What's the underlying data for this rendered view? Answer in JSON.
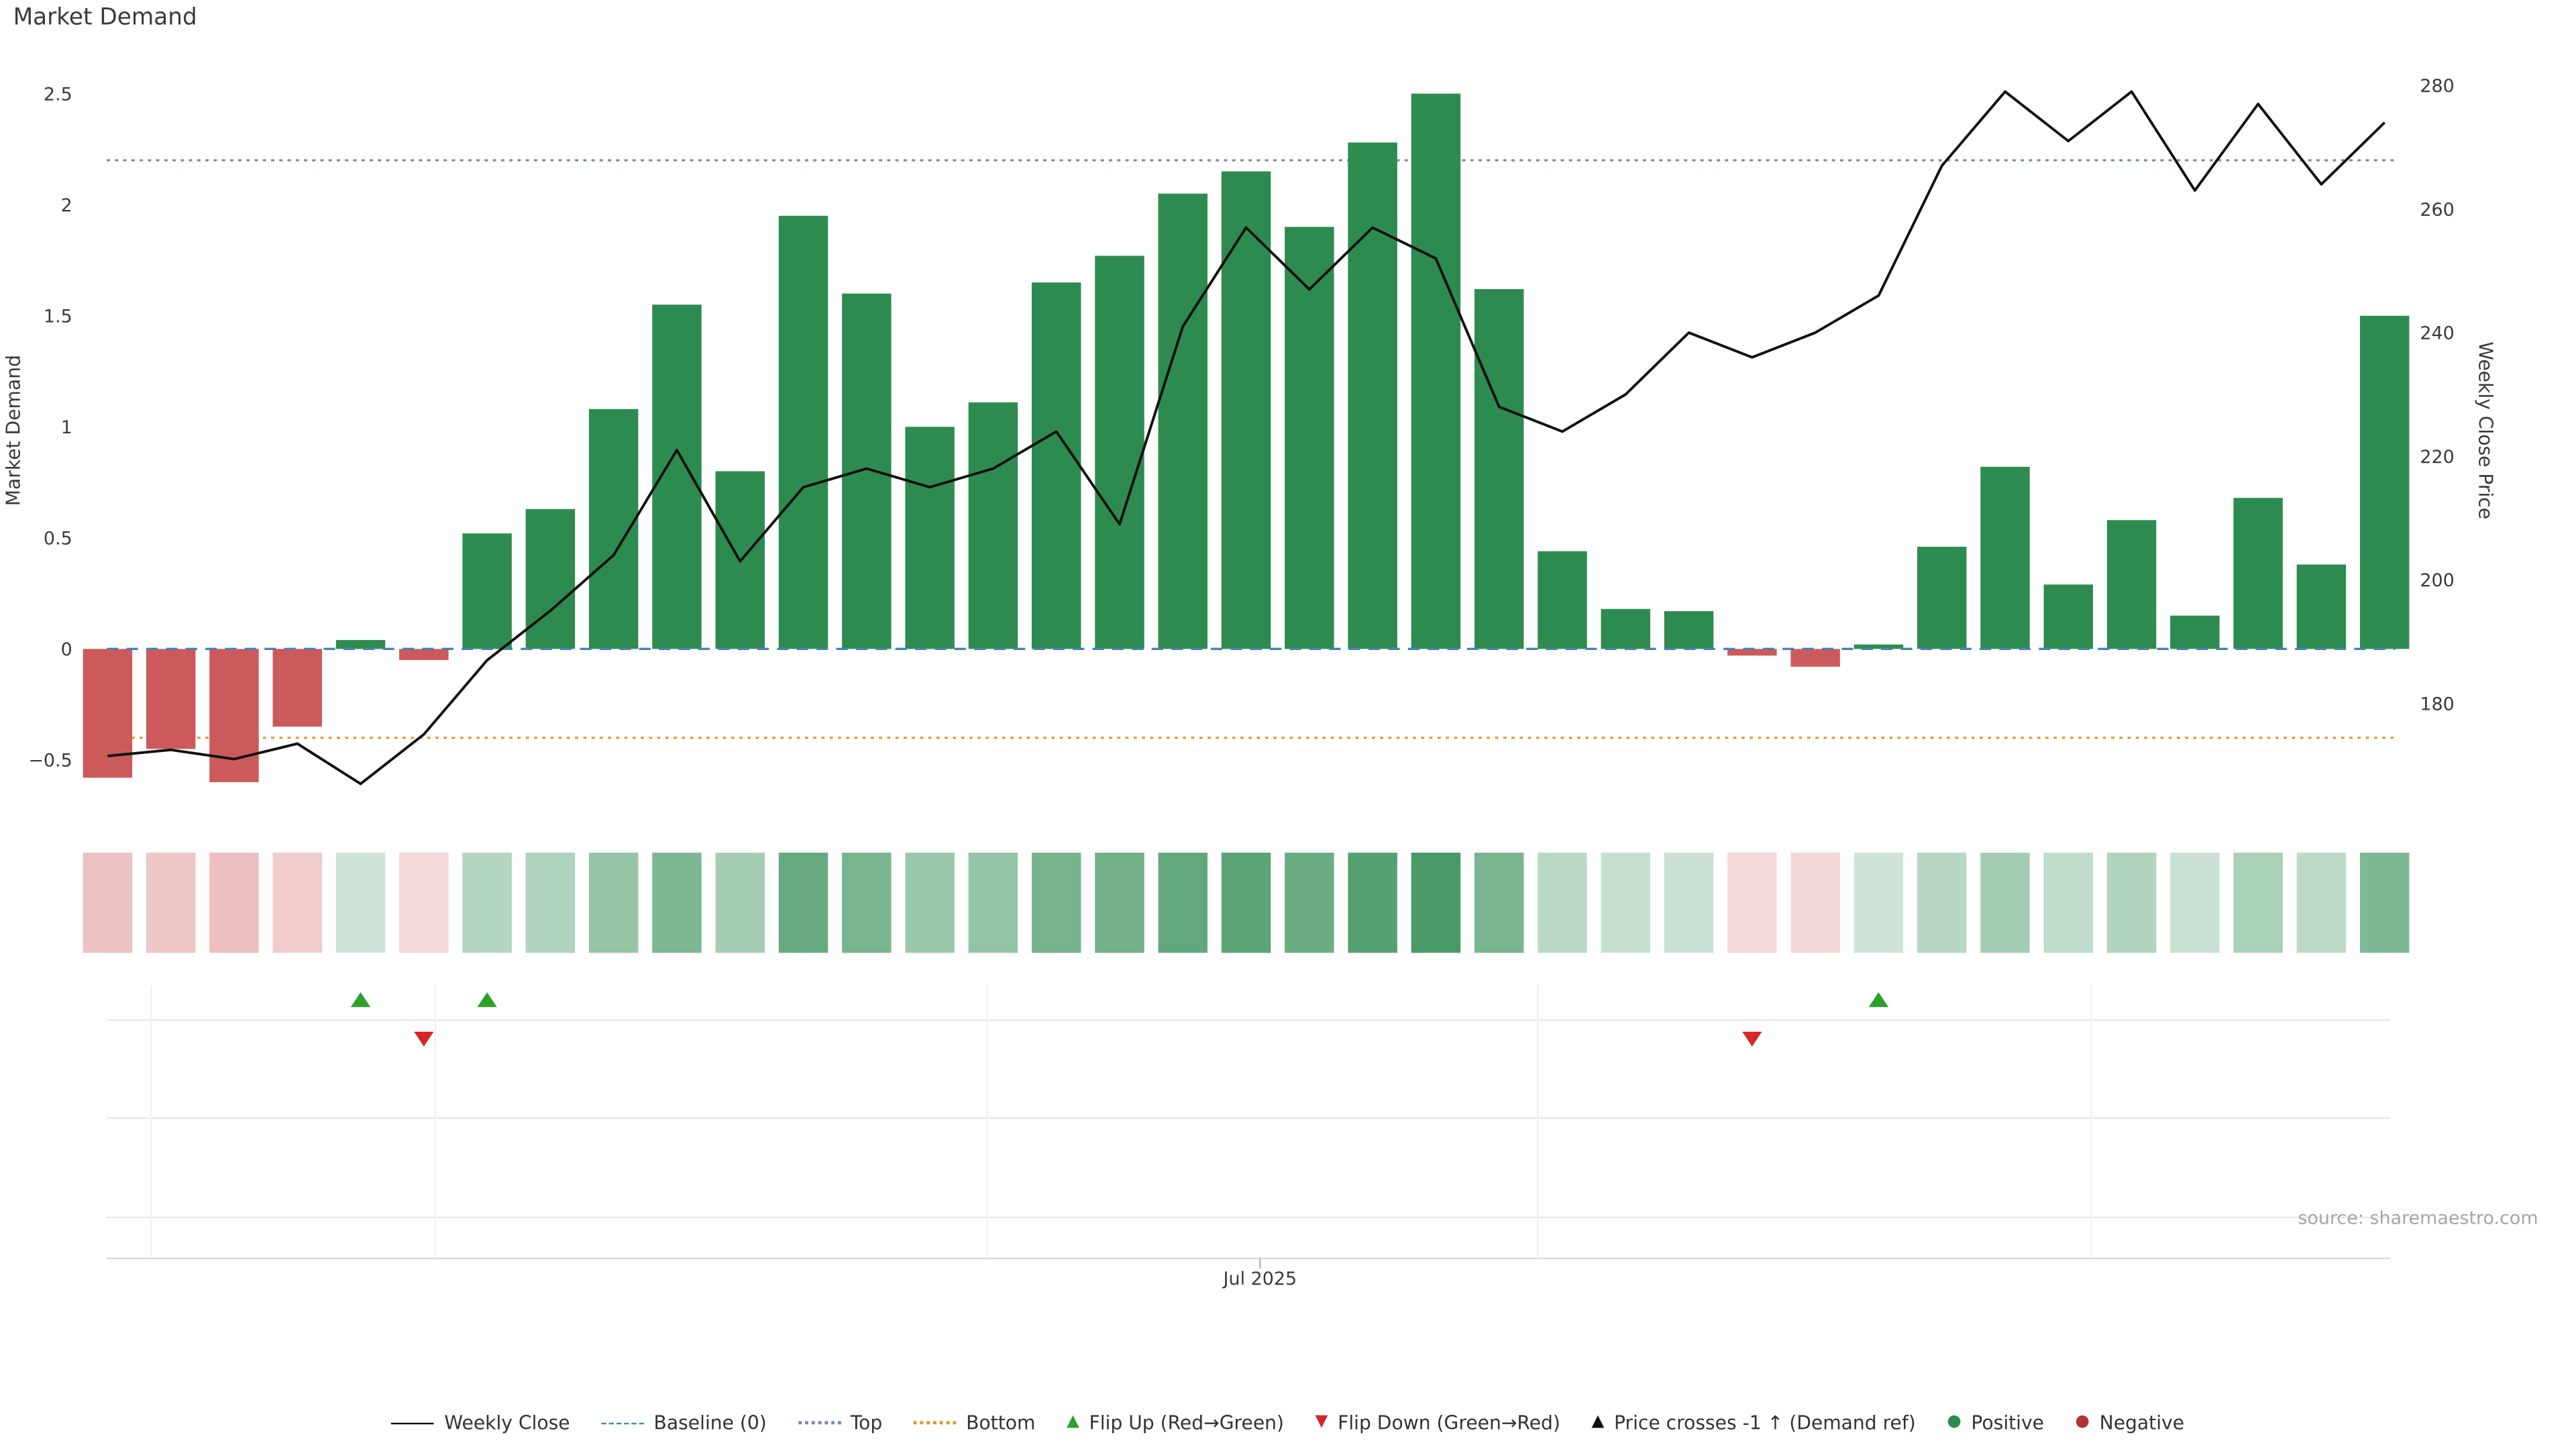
{
  "title": "Market Demand",
  "source": "source: sharemaestro.com",
  "axes": {
    "left_label": "Market Demand",
    "right_label": "Weekly Close Price",
    "x_tick": "Jul 2025"
  },
  "colors": {
    "positive": "#2e8b50",
    "negative": "#cd5a5a",
    "line": "#111111",
    "baseline": "#4682b4",
    "top_line": "#7a86b8",
    "bottom_line": "#dd9933",
    "flip_up": "#2ca02c",
    "flip_down": "#d62728",
    "grid": "#e8e8e8"
  },
  "legend": [
    {
      "label": "Weekly Close",
      "swatch": "line-solid",
      "color": "#111111",
      "icon": "weekly-close-line-icon"
    },
    {
      "label": "Baseline (0)",
      "swatch": "line-dashed",
      "color": "#4682b4",
      "icon": "baseline-dashed-line-icon"
    },
    {
      "label": "Top",
      "swatch": "line-dotted",
      "color": "#7a86b8",
      "icon": "top-dotted-line-icon"
    },
    {
      "label": "Bottom",
      "swatch": "line-dotted",
      "color": "#dd9933",
      "icon": "bottom-dotted-line-icon"
    },
    {
      "label": "Flip Up (Red→Green)",
      "swatch": "glyph",
      "glyph": "▲",
      "color": "#2ca02c",
      "icon": "flip-up-triangle-icon"
    },
    {
      "label": "Flip Down (Green→Red)",
      "swatch": "glyph",
      "glyph": "▼",
      "color": "#d62728",
      "icon": "flip-down-triangle-icon"
    },
    {
      "label": "Price crosses -1 ↑ (Demand ref)",
      "swatch": "glyph",
      "glyph": "▲",
      "color": "#111111",
      "icon": "price-cross-triangle-icon"
    },
    {
      "label": "Positive",
      "swatch": "glyph",
      "glyph": "●",
      "color": "#2e8b50",
      "icon": "positive-dot-icon"
    },
    {
      "label": "Negative",
      "swatch": "glyph",
      "glyph": "●",
      "color": "#b03434",
      "icon": "negative-dot-icon"
    }
  ],
  "chart_data": {
    "type": "bar",
    "title": "Market Demand",
    "x_axis": {
      "visible_tick": "Jul 2025"
    },
    "left_axis": {
      "label": "Market Demand",
      "range": [
        -0.7,
        2.66
      ],
      "ticks": [
        2.5,
        2,
        1.5,
        1,
        0.5,
        0,
        -0.5
      ],
      "tick_labels": [
        "2.5",
        "2",
        "1.5",
        "1",
        "0.5",
        "0",
        "−0.5"
      ]
    },
    "right_axis": {
      "label": "Weekly Close Price",
      "range": [
        163,
        285
      ],
      "ticks": [
        280,
        260,
        240,
        220,
        200,
        180
      ],
      "tick_labels": [
        "280",
        "260",
        "240",
        "220",
        "200",
        "180"
      ]
    },
    "reference_lines": {
      "baseline": 0,
      "top": 2.2,
      "bottom": -0.4
    },
    "series": [
      {
        "name": "Market Demand",
        "type": "bar",
        "axis": "left",
        "values": [
          -0.58,
          -0.45,
          -0.6,
          -0.35,
          0.04,
          -0.05,
          0.52,
          0.63,
          1.08,
          1.55,
          0.8,
          1.95,
          1.6,
          1.0,
          1.11,
          1.65,
          1.77,
          2.05,
          2.15,
          1.9,
          2.28,
          2.5,
          1.62,
          0.44,
          0.18,
          0.17,
          -0.03,
          -0.08,
          0.02,
          0.46,
          0.82,
          0.29,
          0.58,
          0.15,
          0.68,
          0.38,
          1.5
        ]
      },
      {
        "name": "Weekly Close",
        "type": "line",
        "axis": "right",
        "values": [
          171.5,
          172.5,
          171,
          173.5,
          167,
          175,
          187,
          195,
          204,
          221,
          203,
          215,
          218,
          215,
          218,
          224,
          209,
          241,
          257,
          247,
          257,
          252,
          228,
          224,
          230,
          240,
          236,
          240,
          246,
          267,
          279,
          271,
          279,
          263,
          277,
          264,
          274
        ]
      }
    ],
    "heat_strip": {
      "note": "red/green intensity mirrors bar magnitude",
      "source_series": "Market Demand"
    },
    "markers": {
      "flip_up_indices": [
        4,
        6,
        28
      ],
      "flip_down_indices": [
        5,
        26
      ],
      "price_cross_indices": []
    },
    "legend_position": "bottom-center",
    "grid": "off-main, faint rows below"
  }
}
